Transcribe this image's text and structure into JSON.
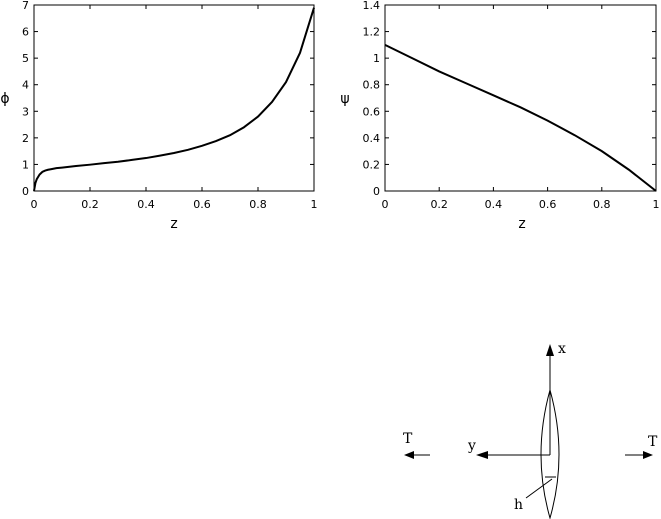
{
  "chart_data": [
    {
      "type": "line",
      "xlabel": "z",
      "ylabel": "ϕ",
      "xlim": [
        0,
        1
      ],
      "ylim": [
        0,
        7
      ],
      "xticks": [
        "0",
        "0.2",
        "0.4",
        "0.6",
        "0.8",
        "1"
      ],
      "yticks": [
        "0",
        "1",
        "2",
        "3",
        "4",
        "5",
        "6",
        "7"
      ],
      "grid": false,
      "series": [
        {
          "x": [
            0,
            0.005,
            0.01,
            0.02,
            0.03,
            0.04,
            0.05,
            0.06,
            0.08,
            0.1,
            0.15,
            0.2,
            0.25,
            0.3,
            0.35,
            0.4,
            0.45,
            0.5,
            0.55,
            0.6,
            0.65,
            0.7,
            0.75,
            0.8,
            0.85,
            0.9,
            0.95,
            1.0
          ],
          "y": [
            0,
            0.3,
            0.45,
            0.62,
            0.72,
            0.77,
            0.8,
            0.82,
            0.86,
            0.88,
            0.94,
            0.99,
            1.05,
            1.1,
            1.17,
            1.24,
            1.33,
            1.43,
            1.55,
            1.7,
            1.88,
            2.1,
            2.4,
            2.8,
            3.35,
            4.1,
            5.2,
            6.9
          ]
        }
      ]
    },
    {
      "type": "line",
      "xlabel": "z",
      "ylabel": "ψ",
      "xlim": [
        0,
        1
      ],
      "ylim": [
        0,
        1.4
      ],
      "xticks": [
        "0",
        "0.2",
        "0.4",
        "0.6",
        "0.8",
        "1"
      ],
      "yticks": [
        "0",
        "0.2",
        "0.4",
        "0.6",
        "0.8",
        "1",
        "1.2",
        "1.4"
      ],
      "grid": false,
      "series": [
        {
          "x": [
            0,
            0.1,
            0.2,
            0.3,
            0.4,
            0.5,
            0.6,
            0.7,
            0.8,
            0.9,
            1.0
          ],
          "y": [
            1.1,
            1.0,
            0.9,
            0.81,
            0.72,
            0.63,
            0.53,
            0.42,
            0.3,
            0.16,
            0
          ]
        }
      ]
    }
  ],
  "diagram": {
    "x_label": "x",
    "y_label": "y",
    "h_label": "h",
    "t_left": "T",
    "t_right": "T"
  }
}
